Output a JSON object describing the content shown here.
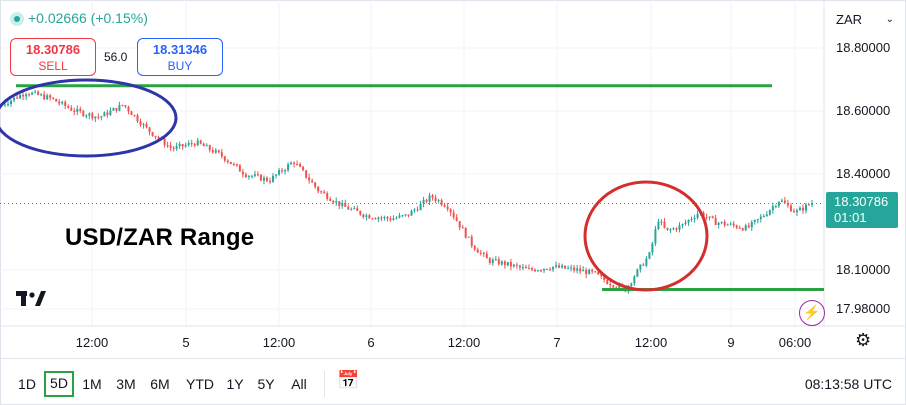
{
  "header": {
    "change_text": "+0.02666 (+0.15%)",
    "sell_price": "18.30786",
    "sell_label": "SELL",
    "spread": "56.0",
    "buy_price": "18.31346",
    "buy_label": "BUY",
    "currency": "ZAR"
  },
  "annotation_text": "USD/ZAR Range",
  "logo_text": "17",
  "last_price": "18.30786",
  "countdown": "01:01",
  "toolbar": {
    "ranges": [
      "1D",
      "5D",
      "1M",
      "3M",
      "6M",
      "YTD",
      "1Y",
      "5Y",
      "All"
    ],
    "active_range": "5D",
    "clock": "08:13:58 UTC"
  },
  "colors": {
    "up": "#26a69a",
    "down": "#ef5350",
    "support_resistance": "#2aa244",
    "ellipse_blue": "#2e35a8",
    "circle_red": "#d32f2f"
  },
  "chart_data": {
    "type": "candlestick",
    "symbol": "USD/ZAR",
    "y_ticks": [
      "18.80000",
      "18.60000",
      "18.40000",
      "18.10000",
      "17.98000"
    ],
    "x_ticks": [
      "12:00",
      "5",
      "12:00",
      "6",
      "12:00",
      "7",
      "12:00",
      "9",
      "06:00"
    ],
    "ylim": [
      17.95,
      18.84
    ],
    "last_price": 18.30786,
    "resistance_level": 18.68,
    "support_level": 18.04,
    "path": [
      [
        0,
        18.62
      ],
      [
        0.03,
        18.66
      ],
      [
        0.06,
        18.64
      ],
      [
        0.09,
        18.6
      ],
      [
        0.12,
        18.58
      ],
      [
        0.15,
        18.62
      ],
      [
        0.18,
        18.54
      ],
      [
        0.21,
        18.48
      ],
      [
        0.24,
        18.5
      ],
      [
        0.27,
        18.46
      ],
      [
        0.3,
        18.4
      ],
      [
        0.33,
        18.38
      ],
      [
        0.36,
        18.44
      ],
      [
        0.39,
        18.35
      ],
      [
        0.42,
        18.3
      ],
      [
        0.45,
        18.27
      ],
      [
        0.48,
        18.26
      ],
      [
        0.5,
        18.27
      ],
      [
        0.53,
        18.33
      ],
      [
        0.55,
        18.3
      ],
      [
        0.58,
        18.18
      ],
      [
        0.6,
        18.13
      ],
      [
        0.62,
        18.12
      ],
      [
        0.65,
        18.1
      ],
      [
        0.68,
        18.11
      ],
      [
        0.71,
        18.1
      ],
      [
        0.73,
        18.09
      ],
      [
        0.75,
        18.06
      ],
      [
        0.77,
        18.04
      ],
      [
        0.78,
        18.08
      ],
      [
        0.8,
        18.15
      ],
      [
        0.81,
        18.26
      ],
      [
        0.82,
        18.22
      ],
      [
        0.84,
        18.24
      ],
      [
        0.86,
        18.28
      ],
      [
        0.88,
        18.25
      ],
      [
        0.9,
        18.24
      ],
      [
        0.92,
        18.23
      ],
      [
        0.94,
        18.27
      ],
      [
        0.96,
        18.32
      ],
      [
        0.98,
        18.28
      ],
      [
        1.0,
        18.31
      ]
    ]
  }
}
